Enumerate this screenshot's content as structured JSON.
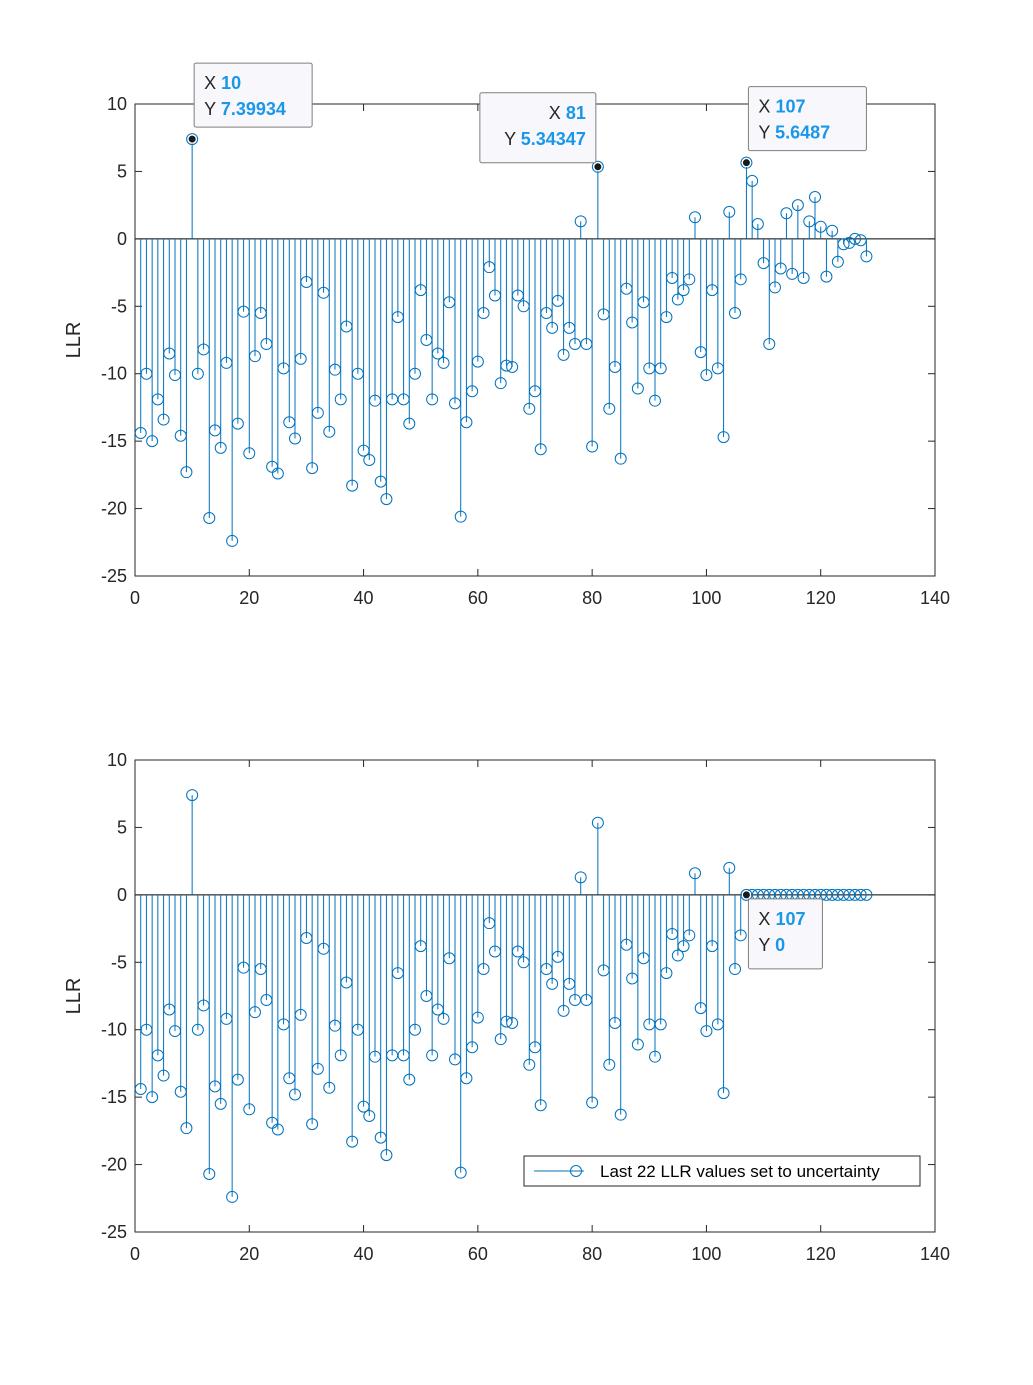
{
  "colors": {
    "stem": "#0072BD",
    "axis": "#262626",
    "grid": "#262626",
    "tip_border": "#7f7f7f",
    "tip_bg": "#f8f8fc",
    "tip_value": "#1a97e8",
    "marker_selected": "#1a1a1a"
  },
  "chart_data": [
    {
      "type": "stem",
      "title": "",
      "xlabel": "",
      "ylabel": "LLR",
      "xlim": [
        0,
        140
      ],
      "ylim": [
        -25,
        10
      ],
      "xticks": [
        0,
        20,
        40,
        60,
        80,
        100,
        120,
        140
      ],
      "yticks": [
        -25,
        -20,
        -15,
        -10,
        -5,
        0,
        5,
        10
      ],
      "x_start": 1,
      "values": [
        -14.4,
        -10.0,
        -15.0,
        -11.9,
        -13.4,
        -8.5,
        -10.1,
        -14.6,
        -17.3,
        7.39934,
        -10.0,
        -8.2,
        -20.7,
        -14.2,
        -15.5,
        -9.2,
        -22.4,
        -13.7,
        -5.4,
        -15.9,
        -8.7,
        -5.5,
        -7.8,
        -16.9,
        -17.4,
        -9.6,
        -13.6,
        -14.8,
        -8.9,
        -3.2,
        -17.0,
        -12.9,
        -4.0,
        -14.3,
        -9.7,
        -11.9,
        -6.5,
        -18.3,
        -10.0,
        -15.7,
        -16.4,
        -12.0,
        -18.0,
        -19.3,
        -11.9,
        -5.8,
        -11.9,
        -13.7,
        -10.0,
        -3.8,
        -7.5,
        -11.9,
        -8.5,
        -9.2,
        -4.7,
        -12.2,
        -20.6,
        -13.6,
        -11.3,
        -9.1,
        -5.5,
        -2.1,
        -4.2,
        -10.7,
        -9.4,
        -9.5,
        -4.2,
        -5.0,
        -12.6,
        -11.3,
        -15.6,
        -5.5,
        -6.6,
        -4.6,
        -8.6,
        -6.6,
        -7.8,
        1.3,
        -7.8,
        -15.4,
        5.34347,
        -5.6,
        -12.6,
        -9.5,
        -16.3,
        -3.7,
        -6.2,
        -11.1,
        -4.7,
        -9.6,
        -12.0,
        -9.6,
        -5.8,
        -2.9,
        -4.5,
        -3.8,
        -3.0,
        1.6,
        -8.4,
        -10.1,
        -3.8,
        -9.6,
        -14.7,
        2.0,
        -5.5,
        -3.0,
        5.6487,
        4.3,
        1.1,
        -1.8,
        -7.8,
        -3.6,
        -2.2,
        1.9,
        -2.6,
        2.5,
        -2.9,
        1.3,
        3.1,
        0.9,
        -2.8,
        0.6,
        -1.7,
        -0.4,
        -0.3,
        0.0,
        -0.1,
        -1.3
      ],
      "datatips": [
        {
          "x": 10,
          "y": 7.39934,
          "x_label": "X",
          "y_label": "Y",
          "x_text": "10",
          "y_text": "7.39934",
          "placement": "upper-right"
        },
        {
          "x": 81,
          "y": 5.34347,
          "x_label": "X",
          "y_label": "Y",
          "x_text": "81",
          "y_text": "5.34347",
          "placement": "upper-left"
        },
        {
          "x": 107,
          "y": 5.6487,
          "x_label": "X",
          "y_label": "Y",
          "x_text": "107",
          "y_text": "5.6487",
          "placement": "upper-right"
        }
      ],
      "legend": null
    },
    {
      "type": "stem",
      "title": "",
      "xlabel": "",
      "ylabel": "LLR",
      "xlim": [
        0,
        140
      ],
      "ylim": [
        -25,
        10
      ],
      "xticks": [
        0,
        20,
        40,
        60,
        80,
        100,
        120,
        140
      ],
      "yticks": [
        -25,
        -20,
        -15,
        -10,
        -5,
        0,
        5,
        10
      ],
      "x_start": 1,
      "values": [
        -14.4,
        -10.0,
        -15.0,
        -11.9,
        -13.4,
        -8.5,
        -10.1,
        -14.6,
        -17.3,
        7.39934,
        -10.0,
        -8.2,
        -20.7,
        -14.2,
        -15.5,
        -9.2,
        -22.4,
        -13.7,
        -5.4,
        -15.9,
        -8.7,
        -5.5,
        -7.8,
        -16.9,
        -17.4,
        -9.6,
        -13.6,
        -14.8,
        -8.9,
        -3.2,
        -17.0,
        -12.9,
        -4.0,
        -14.3,
        -9.7,
        -11.9,
        -6.5,
        -18.3,
        -10.0,
        -15.7,
        -16.4,
        -12.0,
        -18.0,
        -19.3,
        -11.9,
        -5.8,
        -11.9,
        -13.7,
        -10.0,
        -3.8,
        -7.5,
        -11.9,
        -8.5,
        -9.2,
        -4.7,
        -12.2,
        -20.6,
        -13.6,
        -11.3,
        -9.1,
        -5.5,
        -2.1,
        -4.2,
        -10.7,
        -9.4,
        -9.5,
        -4.2,
        -5.0,
        -12.6,
        -11.3,
        -15.6,
        -5.5,
        -6.6,
        -4.6,
        -8.6,
        -6.6,
        -7.8,
        1.3,
        -7.8,
        -15.4,
        5.34347,
        -5.6,
        -12.6,
        -9.5,
        -16.3,
        -3.7,
        -6.2,
        -11.1,
        -4.7,
        -9.6,
        -12.0,
        -9.6,
        -5.8,
        -2.9,
        -4.5,
        -3.8,
        -3.0,
        1.6,
        -8.4,
        -10.1,
        -3.8,
        -9.6,
        -14.7,
        2.0,
        -5.5,
        -3.0,
        0,
        0,
        0,
        0,
        0,
        0,
        0,
        0,
        0,
        0,
        0,
        0,
        0,
        0,
        0,
        0,
        0,
        0,
        0,
        0,
        0,
        0
      ],
      "datatips": [
        {
          "x": 107,
          "y": 0,
          "x_label": "X",
          "y_label": "Y",
          "x_text": "107",
          "y_text": "0",
          "placement": "lower-right"
        }
      ],
      "legend": {
        "label": "Last 22 LLR values set to uncertainty",
        "placement": "bottom-right"
      }
    }
  ]
}
